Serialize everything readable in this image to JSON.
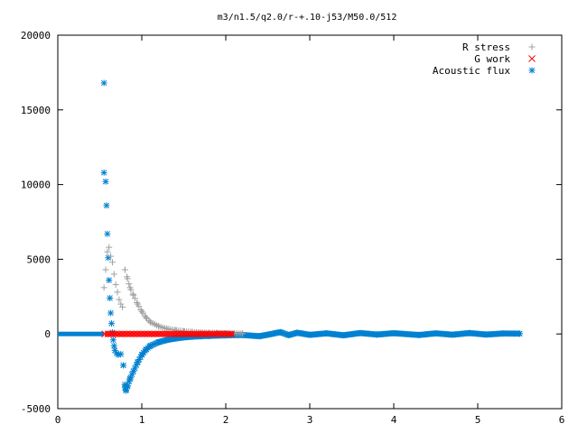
{
  "chart_data": {
    "type": "scatter",
    "title": "m3/n1.5/q2.0/r-+.10-j53/M50.0/512",
    "xlabel": "",
    "ylabel": "",
    "xlim": [
      0,
      6
    ],
    "ylim": [
      -5000,
      20000
    ],
    "x_ticks": [
      "0",
      "1",
      "2",
      "3",
      "4",
      "5",
      "6"
    ],
    "y_ticks": [
      "-5000",
      "0",
      "5000",
      "10000",
      "15000",
      "20000"
    ],
    "grid": false,
    "legend_position": "top-right",
    "series": [
      {
        "name": "R stress",
        "marker": "plus",
        "color": "#a0a0a0",
        "points": [
          [
            0.55,
            3100
          ],
          [
            0.57,
            4300
          ],
          [
            0.59,
            5500
          ],
          [
            0.61,
            5800
          ],
          [
            0.63,
            5200
          ],
          [
            0.65,
            4800
          ],
          [
            0.67,
            4000
          ],
          [
            0.69,
            3300
          ],
          [
            0.71,
            2800
          ],
          [
            0.73,
            2300
          ],
          [
            0.75,
            2000
          ],
          [
            0.77,
            1800
          ],
          [
            0.8,
            4300
          ],
          [
            0.83,
            3700
          ],
          [
            0.86,
            3100
          ],
          [
            0.9,
            2600
          ],
          [
            0.95,
            2000
          ],
          [
            1.0,
            1500
          ],
          [
            1.05,
            1100
          ],
          [
            1.1,
            800
          ],
          [
            1.2,
            520
          ],
          [
            1.3,
            350
          ],
          [
            1.4,
            250
          ],
          [
            1.5,
            180
          ],
          [
            1.6,
            130
          ],
          [
            1.7,
            95
          ],
          [
            1.8,
            70
          ],
          [
            1.9,
            55
          ],
          [
            2.0,
            40
          ],
          [
            2.2,
            25
          ]
        ]
      },
      {
        "name": "G work",
        "marker": "cross",
        "color": "#ff0000",
        "points": [
          [
            0.56,
            0
          ],
          [
            2.1,
            0
          ]
        ]
      },
      {
        "name": "Acoustic flux",
        "marker": "star",
        "color": "#0080d0",
        "points": [
          [
            0.55,
            16800
          ],
          [
            0.55,
            10800
          ],
          [
            0.57,
            10200
          ],
          [
            0.58,
            8600
          ],
          [
            0.59,
            6700
          ],
          [
            0.6,
            5100
          ],
          [
            0.61,
            3600
          ],
          [
            0.62,
            2400
          ],
          [
            0.63,
            1400
          ],
          [
            0.64,
            700
          ],
          [
            0.65,
            100
          ],
          [
            0.66,
            -400
          ],
          [
            0.67,
            -800
          ],
          [
            0.68,
            -1100
          ],
          [
            0.7,
            -1300
          ],
          [
            0.72,
            -1400
          ],
          [
            0.75,
            -1350
          ],
          [
            0.78,
            -2100
          ],
          [
            0.8,
            -3600
          ],
          [
            0.81,
            -3800
          ],
          [
            0.83,
            -3500
          ],
          [
            0.86,
            -3000
          ],
          [
            0.9,
            -2500
          ],
          [
            0.95,
            -1900
          ],
          [
            1.0,
            -1400
          ],
          [
            1.05,
            -1050
          ],
          [
            1.1,
            -800
          ],
          [
            1.2,
            -550
          ],
          [
            1.3,
            -400
          ],
          [
            1.4,
            -300
          ],
          [
            1.5,
            -230
          ],
          [
            1.6,
            -180
          ],
          [
            1.7,
            -150
          ],
          [
            1.8,
            -130
          ],
          [
            1.9,
            -110
          ],
          [
            2.0,
            -90
          ],
          [
            2.2,
            -70
          ],
          [
            2.4,
            -150
          ],
          [
            2.5,
            -50
          ],
          [
            2.65,
            120
          ],
          [
            2.75,
            -80
          ],
          [
            2.85,
            80
          ],
          [
            3.0,
            -60
          ],
          [
            3.2,
            40
          ],
          [
            3.4,
            -90
          ],
          [
            3.6,
            60
          ],
          [
            3.8,
            -40
          ],
          [
            4.0,
            50
          ],
          [
            4.3,
            -70
          ],
          [
            4.5,
            40
          ],
          [
            4.7,
            -50
          ],
          [
            4.9,
            60
          ],
          [
            5.1,
            -40
          ],
          [
            5.3,
            30
          ],
          [
            5.5,
            20
          ]
        ]
      }
    ]
  }
}
